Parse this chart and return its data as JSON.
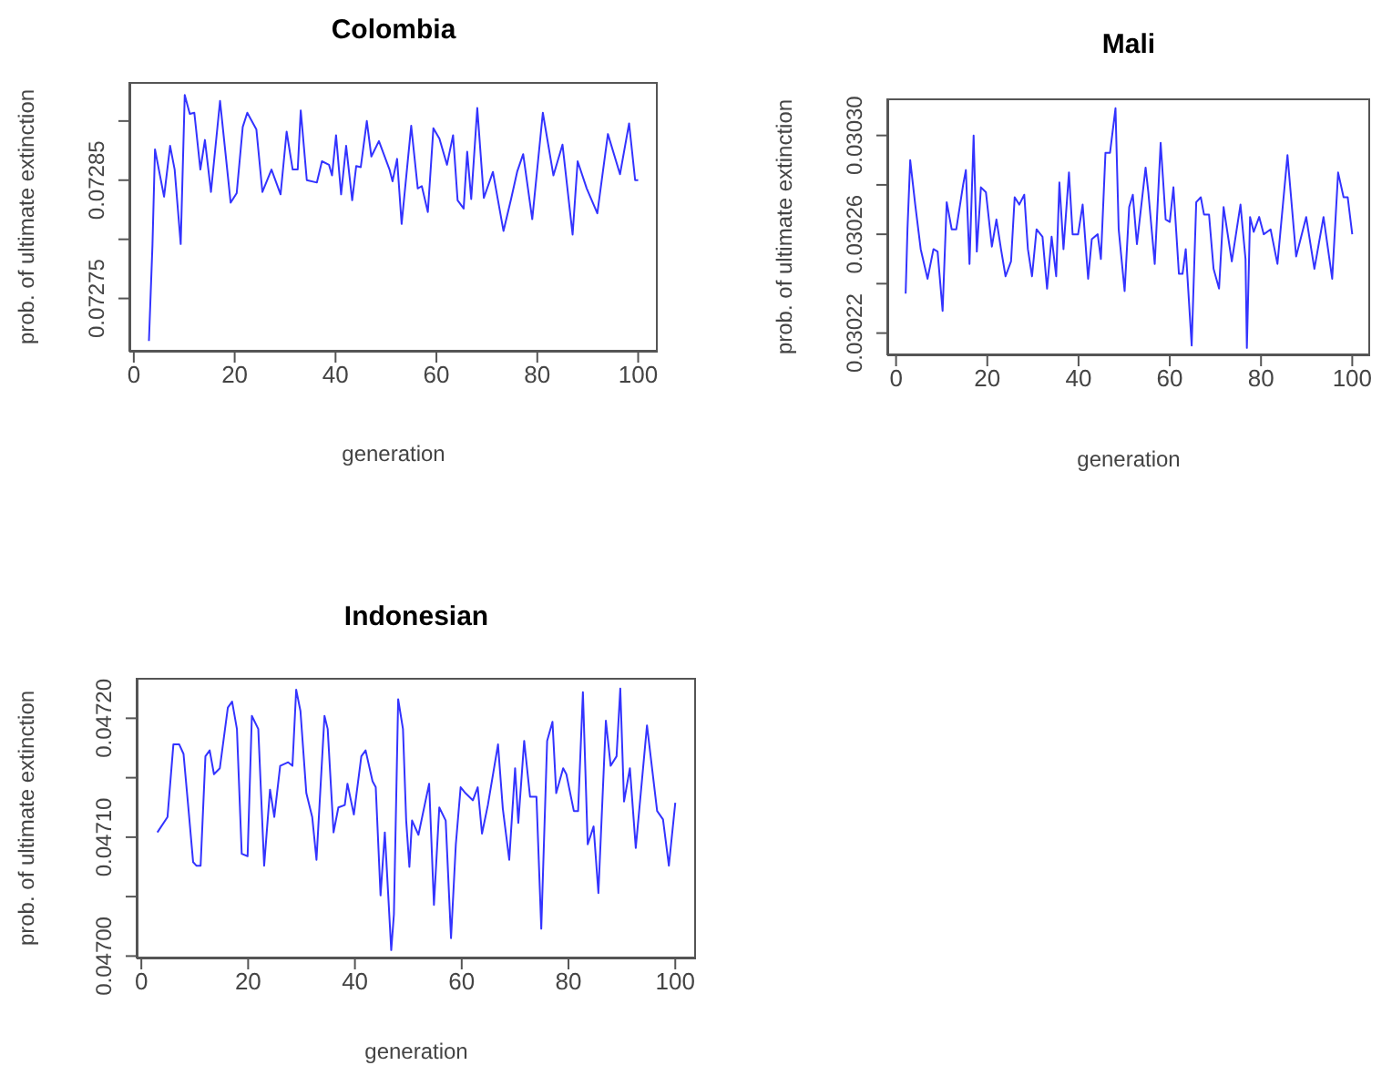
{
  "chart_data": [
    {
      "type": "line",
      "title": "Colombia",
      "xlabel": "generation",
      "ylabel": "prob. of ultimate extinction",
      "color": "#3333ff",
      "xlim": [
        -0.88,
        103.88
      ],
      "xticks": [
        0,
        20,
        40,
        60,
        80,
        100
      ],
      "ylim": [
        0.072705,
        0.072933
      ],
      "yticks": [
        {
          "value": 0.07275,
          "label": "0.07275"
        },
        {
          "value": 0.0728,
          "label": null
        },
        {
          "value": 0.07285,
          "label": "0.07285"
        },
        {
          "value": 0.0729,
          "label": null
        }
      ],
      "x": [
        3,
        3.7,
        4.2,
        6,
        7.2,
        8.1,
        9.3,
        10.1,
        11.1,
        12,
        13.2,
        14.1,
        15.3,
        17.1,
        19.2,
        20.4,
        21.6,
        22.5,
        24.3,
        25.5,
        27.3,
        29.1,
        30.3,
        31.5,
        32.5,
        33.1,
        34.3,
        36.3,
        37.3,
        38.7,
        39.3,
        40.1,
        41.1,
        42.1,
        43.3,
        44.1,
        45,
        46.2,
        47.1,
        48.6,
        50.7,
        51.3,
        52.2,
        53.1,
        55,
        56.3,
        57.1,
        58.3,
        59.4,
        60.6,
        62.1,
        63.3,
        64.2,
        65.4,
        66.1,
        66.9,
        68.1,
        69.4,
        71.2,
        73.3,
        74.8,
        76,
        77.2,
        79,
        81.1,
        83.2,
        85,
        87,
        88,
        89.8,
        91.9,
        94,
        96.4,
        98.2,
        99.4,
        100
      ],
      "values": [
        0.072714,
        0.072795,
        0.072876,
        0.072836,
        0.072879,
        0.072859,
        0.072796,
        0.072922,
        0.072906,
        0.072907,
        0.072859,
        0.072884,
        0.07284,
        0.072917,
        0.072831,
        0.072839,
        0.072895,
        0.072907,
        0.072893,
        0.07284,
        0.072859,
        0.072838,
        0.072891,
        0.072859,
        0.072859,
        0.072909,
        0.07285,
        0.072848,
        0.072866,
        0.072863,
        0.072854,
        0.072888,
        0.072838,
        0.072879,
        0.072833,
        0.072862,
        0.072861,
        0.0729,
        0.07287,
        0.072883,
        0.072859,
        0.072849,
        0.072868,
        0.072813,
        0.072896,
        0.072843,
        0.072845,
        0.072823,
        0.072894,
        0.072885,
        0.072863,
        0.072888,
        0.072833,
        0.072826,
        0.072874,
        0.072834,
        0.072911,
        0.072835,
        0.072857,
        0.072807,
        0.072834,
        0.072857,
        0.072872,
        0.072817,
        0.072907,
        0.072854,
        0.07288,
        0.072804,
        0.072866,
        0.072843,
        0.072822,
        0.072889,
        0.072855,
        0.072898,
        0.07285,
        0.07285
      ]
    },
    {
      "type": "line",
      "title": "Mali",
      "xlabel": "generation",
      "ylabel": "prob. of ultimate extinction",
      "color": "#3333ff",
      "xlim": [
        -1.92,
        103.92
      ],
      "xticks": [
        0,
        20,
        40,
        60,
        80,
        100
      ],
      "ylim": [
        0.030211,
        0.030315
      ],
      "yticks": [
        0.03022,
        {
          "value": 0.03024,
          "label": null
        },
        0.03026,
        {
          "value": 0.03028,
          "label": null
        },
        {
          "value": 0.0303,
          "label": "0.03030"
        }
      ],
      "x": [
        2.1,
        2.5,
        3.1,
        4.2,
        5.4,
        6.9,
        8.2,
        9.1,
        10.2,
        11.1,
        12.2,
        13.2,
        14.7,
        15.3,
        16.1,
        17,
        17.7,
        18.6,
        19.7,
        21,
        22,
        23,
        24,
        25.2,
        26,
        27,
        28.1,
        28.9,
        29.8,
        30.8,
        32.1,
        33.1,
        34.1,
        35.1,
        35.8,
        36.7,
        37.9,
        38.7,
        39.9,
        40.9,
        42.1,
        42.9,
        44.2,
        44.9,
        45.9,
        46.9,
        48.1,
        48.8,
        50.1,
        51.1,
        51.9,
        52.8,
        54.7,
        55.3,
        56.7,
        58,
        59.1,
        60,
        60.8,
        62,
        62.8,
        63.5,
        64.8,
        65.8,
        66.8,
        67.5,
        68.6,
        69.6,
        70.8,
        71.8,
        73.6,
        75.5,
        76.6,
        76.9,
        77.6,
        78.4,
        79.6,
        80.6,
        82.1,
        83.6,
        85.8,
        87.7,
        89.9,
        91.7,
        93.7,
        95.6,
        96.9,
        98.1,
        99,
        100
      ],
      "values": [
        0.030236,
        0.030262,
        0.03029,
        0.030272,
        0.030254,
        0.030242,
        0.030254,
        0.030253,
        0.030229,
        0.030273,
        0.030262,
        0.030262,
        0.03028,
        0.030286,
        0.030248,
        0.0303,
        0.030253,
        0.030279,
        0.030277,
        0.030255,
        0.030266,
        0.030254,
        0.030243,
        0.030249,
        0.030275,
        0.030272,
        0.030276,
        0.030254,
        0.030243,
        0.030262,
        0.030259,
        0.030238,
        0.030259,
        0.030243,
        0.030281,
        0.030254,
        0.030285,
        0.03026,
        0.03026,
        0.030272,
        0.030242,
        0.030258,
        0.03026,
        0.03025,
        0.030293,
        0.030293,
        0.030311,
        0.030262,
        0.030237,
        0.030271,
        0.030276,
        0.030256,
        0.030287,
        0.030277,
        0.030248,
        0.030297,
        0.030266,
        0.030265,
        0.030279,
        0.030244,
        0.030244,
        0.030254,
        0.030215,
        0.030273,
        0.030275,
        0.030268,
        0.030268,
        0.030246,
        0.030238,
        0.030271,
        0.030249,
        0.030272,
        0.03025,
        0.030214,
        0.030267,
        0.030261,
        0.030267,
        0.03026,
        0.030262,
        0.030248,
        0.030292,
        0.030251,
        0.030267,
        0.030246,
        0.030267,
        0.030242,
        0.030285,
        0.030275,
        0.030275,
        0.03026
      ]
    },
    {
      "type": "line",
      "title": "Indonesian",
      "xlabel": "generation",
      "ylabel": "prob. of ultimate extinction",
      "color": "#3333ff",
      "xlim": [
        -0.88,
        103.88
      ],
      "xticks": [
        0,
        20,
        40,
        60,
        80,
        100
      ],
      "ylim": [
        0.046998,
        0.047234
      ],
      "yticks": [
        {
          "value": 0.047,
          "label": "0.04700"
        },
        {
          "value": 0.04705,
          "label": null
        },
        {
          "value": 0.0471,
          "label": "0.04710"
        },
        {
          "value": 0.04715,
          "label": null
        },
        {
          "value": 0.0472,
          "label": "0.04720"
        }
      ],
      "x": [
        3,
        4.9,
        6,
        7.1,
        7.9,
        8.8,
        9.7,
        10.3,
        11.1,
        12,
        12.8,
        13.6,
        14.7,
        16.2,
        17,
        17.9,
        18.8,
        19.9,
        20.7,
        21.9,
        23,
        24.1,
        24.9,
        26,
        27.5,
        28.3,
        29,
        29.8,
        30.9,
        32,
        32.8,
        34.3,
        34.9,
        36,
        36.9,
        38.1,
        38.6,
        39.8,
        41.2,
        42,
        43.3,
        43.9,
        44.8,
        45.6,
        46.8,
        47.3,
        48.1,
        49,
        49.6,
        50.2,
        50.7,
        51.9,
        53.9,
        54.8,
        55.8,
        57,
        58,
        58.9,
        59.8,
        60.7,
        62.1,
        63,
        63.8,
        64.9,
        66.8,
        67.7,
        68.9,
        70,
        70.6,
        71.7,
        72.8,
        74,
        74.9,
        76,
        77,
        77.7,
        79,
        79.6,
        81,
        81.8,
        82.7,
        83.6,
        84.7,
        85.6,
        87,
        87.9,
        89,
        89.7,
        90.4,
        91.5,
        92.6,
        94.7,
        96.6,
        97.7,
        98.8,
        100
      ],
      "values": [
        0.047104,
        0.047117,
        0.047178,
        0.047178,
        0.04717,
        0.047125,
        0.047079,
        0.047076,
        0.047076,
        0.047168,
        0.047173,
        0.047153,
        0.047158,
        0.047209,
        0.047214,
        0.047191,
        0.047086,
        0.047084,
        0.047202,
        0.047191,
        0.047076,
        0.04714,
        0.047117,
        0.04716,
        0.047163,
        0.04716,
        0.047224,
        0.047206,
        0.047137,
        0.047117,
        0.047081,
        0.047202,
        0.047191,
        0.047104,
        0.047125,
        0.047127,
        0.047145,
        0.047119,
        0.047168,
        0.047173,
        0.047147,
        0.047142,
        0.047051,
        0.047104,
        0.047005,
        0.047035,
        0.047216,
        0.047191,
        0.047114,
        0.047075,
        0.047114,
        0.047102,
        0.047145,
        0.047043,
        0.047125,
        0.047114,
        0.047015,
        0.047094,
        0.047142,
        0.047137,
        0.047131,
        0.047142,
        0.047103,
        0.047127,
        0.047178,
        0.047124,
        0.047081,
        0.047158,
        0.047112,
        0.047181,
        0.047134,
        0.047134,
        0.047023,
        0.047181,
        0.047197,
        0.047137,
        0.047158,
        0.047153,
        0.047122,
        0.047122,
        0.047222,
        0.047094,
        0.047109,
        0.047053,
        0.047198,
        0.04716,
        0.047168,
        0.047225,
        0.04713,
        0.047158,
        0.047091,
        0.047194,
        0.047122,
        0.047115,
        0.047076,
        0.047129
      ]
    }
  ]
}
